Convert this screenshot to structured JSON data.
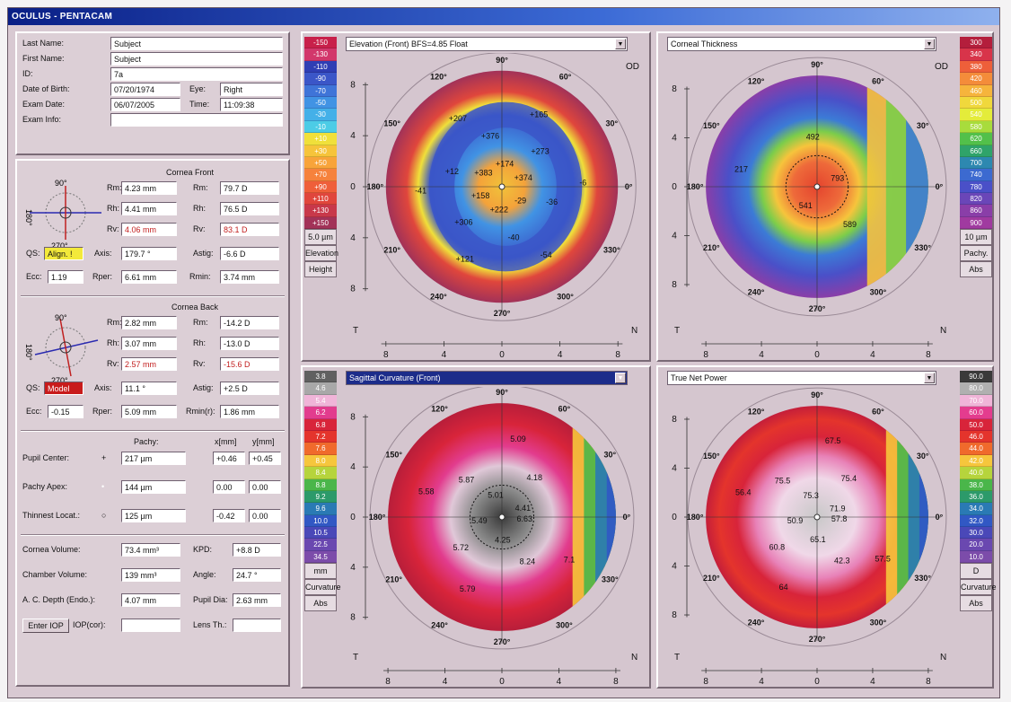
{
  "window_title": "OCULUS - PENTACAM",
  "patient": {
    "last_name_label": "Last Name:",
    "last_name": "Subject",
    "first_name_label": "First Name:",
    "first_name": "Subject",
    "id_label": "ID:",
    "id": "7a",
    "dob_label": "Date of Birth:",
    "dob": "07/20/1974",
    "eye_label": "Eye:",
    "eye": "Right",
    "exam_date_label": "Exam Date:",
    "exam_date": "06/07/2005",
    "time_label": "Time:",
    "time": "11:09:38",
    "exam_info_label": "Exam Info:",
    "exam_info": ""
  },
  "cornea_front": {
    "title": "Cornea Front",
    "rm_label": "Rm:",
    "rm_mm": "4.23 mm",
    "rm_d": "79.7 D",
    "rh_label": "Rh:",
    "rh_mm": "4.41 mm",
    "rh_d": "76.5 D",
    "rv_label": "Rv:",
    "rv_mm": "4.06 mm",
    "rv_d": "83.1 D",
    "qs_label": "QS:",
    "qs_value": "Align. !",
    "axis_label": "Axis:",
    "axis": "179.7 °",
    "astig_label": "Astig:",
    "astig": "-6.6 D",
    "ecc_label": "Ecc:",
    "ecc": "1.19",
    "rper_label": "Rper:",
    "rper": "6.61 mm",
    "rmin_label": "Rmin:",
    "rmin": "3.74 mm"
  },
  "cornea_back": {
    "title": "Cornea Back",
    "rm_label": "Rm:",
    "rm_mm": "2.82 mm",
    "rm_d": "-14.2 D",
    "rh_label": "Rh:",
    "rh_mm": "3.07 mm",
    "rh_d": "-13.0 D",
    "rv_label": "Rv:",
    "rv_mm": "2.57 mm",
    "rv_d": "-15.6 D",
    "qs_label": "QS:",
    "qs_value": "Model",
    "axis_label": "Axis:",
    "axis": "11.1 °",
    "astig_label": "Astig:",
    "astig": "+2.5 D",
    "ecc_label": "Ecc:",
    "ecc": "-0.15",
    "rper_label": "Rper:",
    "rper": "5.09 mm",
    "rmin_label": "Rmin(r):",
    "rmin": "1.86 mm"
  },
  "axis_diagram": {
    "top": "90°",
    "left": "180°",
    "bottom": "270°"
  },
  "pachy": {
    "pachy_header": "Pachy:",
    "x_header": "x[mm]",
    "y_header": "y[mm]",
    "rows": [
      {
        "label": "Pupil Center:",
        "symbol": "+",
        "pachy": "217 µm",
        "x": "+0.46",
        "y": "+0.45"
      },
      {
        "label": "Pachy Apex:",
        "symbol": "•",
        "pachy": "144 µm",
        "x": "0.00",
        "y": "0.00"
      },
      {
        "label": "Thinnest Locat.:",
        "symbol": "○",
        "pachy": "125 µm",
        "x": "-0.42",
        "y": "0.00"
      }
    ]
  },
  "volumes": {
    "cornea_volume_label": "Cornea Volume:",
    "cornea_volume": "73.4 mm³",
    "kpd_label": "KPD:",
    "kpd": "+8.8 D",
    "chamber_volume_label": "Chamber Volume:",
    "chamber_volume": "139 mm³",
    "angle_label": "Angle:",
    "angle": "24.7 °",
    "acd_label": "A. C. Depth (Endo.):",
    "acd": "4.07 mm",
    "pupil_dia_label": "Pupil Dia:",
    "pupil_dia": "2.63 mm",
    "enter_iop": "Enter IOP",
    "iop_cor_label": "IOP(cor):",
    "iop_cor": "",
    "lens_th_label": "Lens Th.:",
    "lens_th": ""
  },
  "maps": {
    "elevation": {
      "dropdown": "Elevation (Front)  BFS=4.85 Float",
      "scale": [
        "-150",
        "-130",
        "-110",
        "-90",
        "-70",
        "-50",
        "-30",
        "-10",
        "+10",
        "+30",
        "+50",
        "+70",
        "+90",
        "+110",
        "+130",
        "+150"
      ],
      "scale_colors": [
        "#c8204a",
        "#d2376b",
        "#2f3eb4",
        "#3b56c8",
        "#3f74d8",
        "#4193e4",
        "#44b0e8",
        "#4ccce6",
        "#f0e03a",
        "#f6c43a",
        "#f8a43a",
        "#f6823c",
        "#ef5f3a",
        "#e0463c",
        "#c8384a",
        "#a23258"
      ],
      "footer": [
        "5.0 µm",
        "Elevation",
        "Height"
      ],
      "oculus": "OD",
      "values": [
        "+374",
        "+273",
        "+165",
        "+174",
        "+376",
        "+207",
        "+383",
        "+12",
        "-41",
        "+158",
        "+306",
        "+121",
        "+222",
        "-40",
        "-54",
        "-29",
        "-36",
        "-6"
      ]
    },
    "thickness": {
      "dropdown": "Corneal Thickness",
      "scale": [
        "300",
        "340",
        "380",
        "420",
        "460",
        "500",
        "540",
        "580",
        "620",
        "660",
        "700",
        "740",
        "780",
        "820",
        "860",
        "900"
      ],
      "scale_colors": [
        "#b41e3c",
        "#d8344a",
        "#ee5f3a",
        "#f48c3a",
        "#f6b43c",
        "#f0d83c",
        "#e4ec3a",
        "#a8dc3c",
        "#52c04a",
        "#2fa36a",
        "#2d88b0",
        "#3c6ad0",
        "#4a50c8",
        "#6a46b8",
        "#8a3ea8",
        "#a03aa0"
      ],
      "footer": [
        "10 µm",
        "Pachy.",
        "Abs"
      ],
      "oculus": "OD",
      "values": [
        "793",
        "492",
        "217",
        "541",
        "589"
      ]
    },
    "sagittal": {
      "dropdown": "Sagittal Curvature (Front)",
      "scale": [
        "3.8",
        "4.6",
        "5.4",
        "6.2",
        "6.8",
        "7.2",
        "7.6",
        "8.0",
        "8.4",
        "8.8",
        "9.2",
        "9.6",
        "10.0",
        "10.5",
        "22.5",
        "34.5"
      ],
      "scale_colors": [
        "#606060",
        "#a8a8a8",
        "#f0b4d8",
        "#e23c8e",
        "#d8243a",
        "#e4342c",
        "#f06a2c",
        "#f6c63c",
        "#b6d43c",
        "#4ab64a",
        "#2c9a6a",
        "#2a7ab4",
        "#3158c4",
        "#4a48b8",
        "#6a48b0",
        "#7c4caa"
      ],
      "footer": [
        "mm",
        "Curvature",
        "Abs"
      ],
      "values": [
        "4.41",
        "4.18",
        "5.09",
        "5.01",
        "5.87",
        "5.58",
        "5.49",
        "5.72",
        "5.79",
        "4.25",
        "8.24",
        "7.1",
        "6.63"
      ]
    },
    "truenet": {
      "dropdown": "True Net Power",
      "scale": [
        "90.0",
        "80.0",
        "70.0",
        "60.0",
        "50.0",
        "46.0",
        "44.0",
        "42.0",
        "40.0",
        "38.0",
        "36.0",
        "34.0",
        "32.0",
        "30.0",
        "20.0",
        "10.0"
      ],
      "scale_colors": [
        "#3a3a3a",
        "#b0b0b0",
        "#f0b4d8",
        "#e43c8e",
        "#d8243a",
        "#e4342c",
        "#f06a2c",
        "#f6c63c",
        "#b6d43c",
        "#4ab64a",
        "#2c9a6a",
        "#2a7ab4",
        "#3158c4",
        "#4a48b8",
        "#6a48b0",
        "#7c4caa"
      ],
      "footer": [
        "D",
        "Curvature",
        "Abs"
      ],
      "values": [
        "71.9",
        "75.4",
        "67.5",
        "75.3",
        "75.5",
        "56.4",
        "50.9",
        "60.8",
        "64",
        "65.1",
        "42.3",
        "57.5",
        "57.8"
      ]
    },
    "degree_labels": [
      "90°",
      "60°",
      "30°",
      "0°",
      "330°",
      "300°",
      "270°",
      "240°",
      "210°",
      "180°",
      "150°",
      "120°"
    ],
    "x_ticks": [
      "8",
      "4",
      "0",
      "4",
      "8"
    ],
    "y_ticks": [
      "8",
      "4",
      "0",
      "4",
      "8"
    ],
    "side_labels": {
      "left": "T",
      "right": "N"
    }
  }
}
